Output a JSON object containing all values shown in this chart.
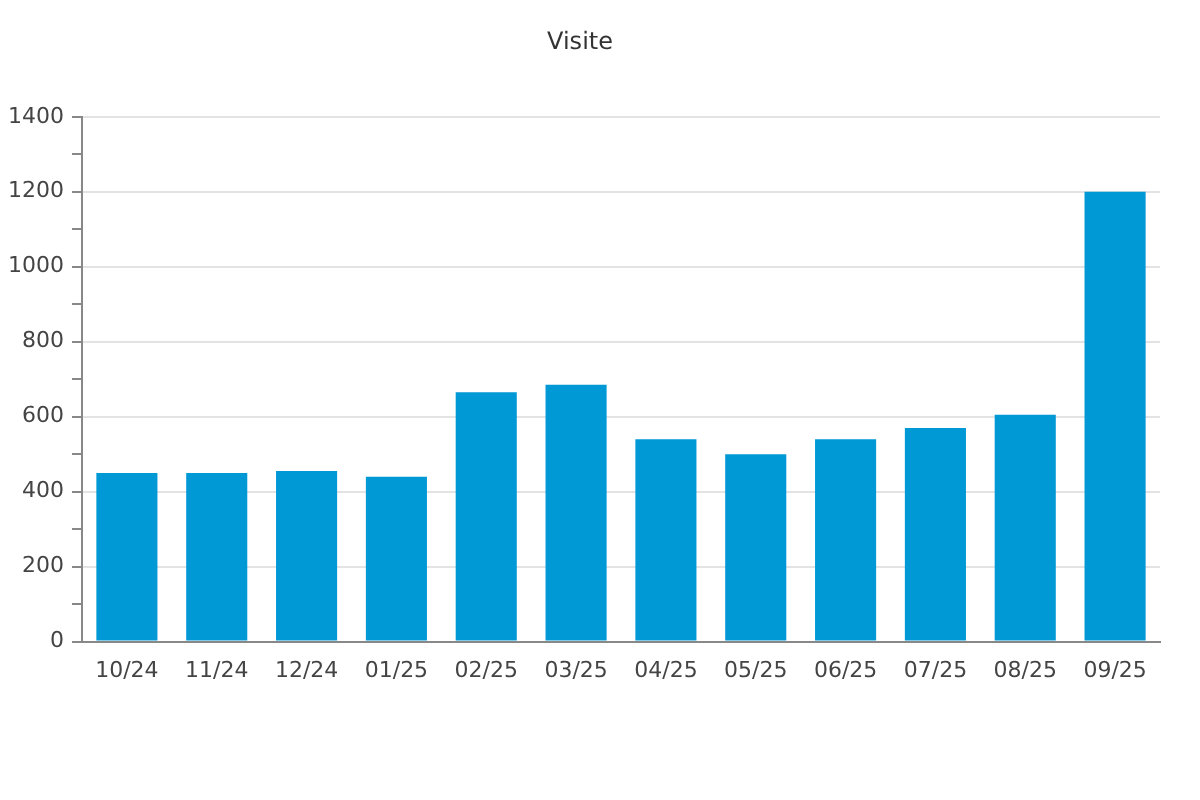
{
  "chart_data": {
    "type": "bar",
    "title": "Visite",
    "categories": [
      "10/24",
      "11/24",
      "12/24",
      "01/25",
      "02/25",
      "03/25",
      "04/25",
      "05/25",
      "06/25",
      "07/25",
      "08/25",
      "09/25"
    ],
    "values": [
      450,
      450,
      455,
      440,
      665,
      685,
      540,
      500,
      540,
      570,
      605,
      1200
    ],
    "color": "#0099d6",
    "ylim": [
      0,
      1400
    ],
    "yticks": [
      0,
      {
        "value": 100,
        "label": null
      },
      200,
      {
        "value": 300,
        "label": null
      },
      400,
      {
        "value": 500,
        "label": null
      },
      600,
      {
        "value": 700,
        "label": null
      },
      800,
      {
        "value": 900,
        "label": null
      },
      1000,
      {
        "value": 1100,
        "label": null
      },
      1200,
      {
        "value": 1300,
        "label": null
      },
      1400
    ],
    "grid": "y"
  }
}
